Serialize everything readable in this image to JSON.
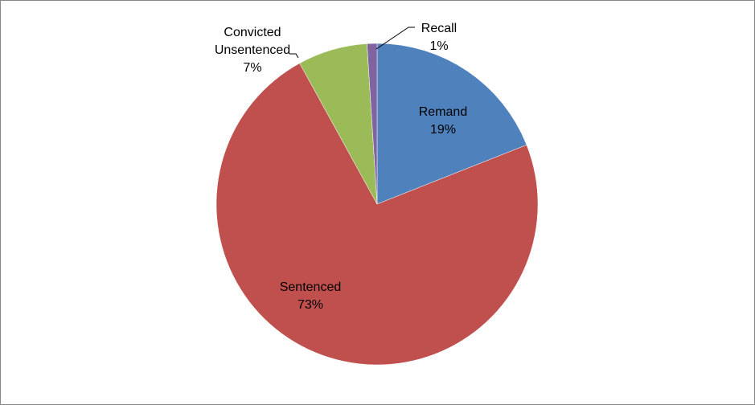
{
  "chart_data": {
    "type": "pie",
    "categories": [
      "Remand",
      "Sentenced",
      "Convicted Unsentenced",
      "Recall"
    ],
    "values": [
      19,
      73,
      7,
      1
    ],
    "value_labels": [
      "19%",
      "73%",
      "7%",
      "1%"
    ],
    "colors": [
      "#4f81bd",
      "#c0504d",
      "#9bbb59",
      "#8064a2"
    ]
  }
}
